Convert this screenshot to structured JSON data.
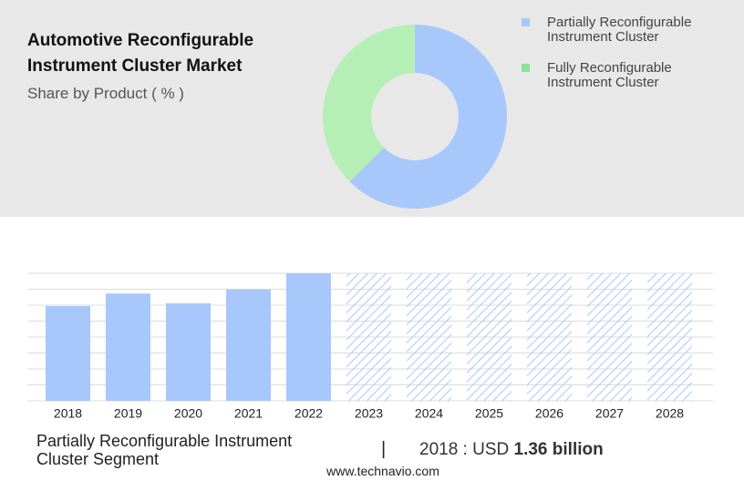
{
  "header": {
    "title": "Automotive Reconfigurable Instrument Cluster Market",
    "subtitle": "Share by Product ( % )"
  },
  "chart_data": [
    {
      "type": "pie",
      "hole": true,
      "series": [
        {
          "name": "Partially Reconfigurable Instrument Cluster",
          "color": "#a8c8fb",
          "values": [
            62.5
          ]
        },
        {
          "name": "Fully Reconfigurable Instrument Cluster",
          "color": "#b6efb6",
          "values": [
            37.5
          ]
        }
      ],
      "legend": "right"
    },
    {
      "type": "bar",
      "categories": [
        "2018",
        "2019",
        "2020",
        "2021",
        "2022",
        "2023",
        "2024",
        "2025",
        "2026",
        "2027",
        "2028"
      ],
      "values": [
        1.36,
        1.54,
        1.4,
        1.6,
        1.83,
        null,
        null,
        null,
        null,
        null,
        null
      ],
      "color": "#a8c8fb",
      "ylim": [
        0,
        1.83
      ],
      "grid": true
    }
  ],
  "footer": {
    "segment": "Partially Reconfigurable Instrument Cluster Segment",
    "separator": "|",
    "year_label": "2018 : USD",
    "highlight": "1.36 billion",
    "source": "www.technavio.com"
  }
}
